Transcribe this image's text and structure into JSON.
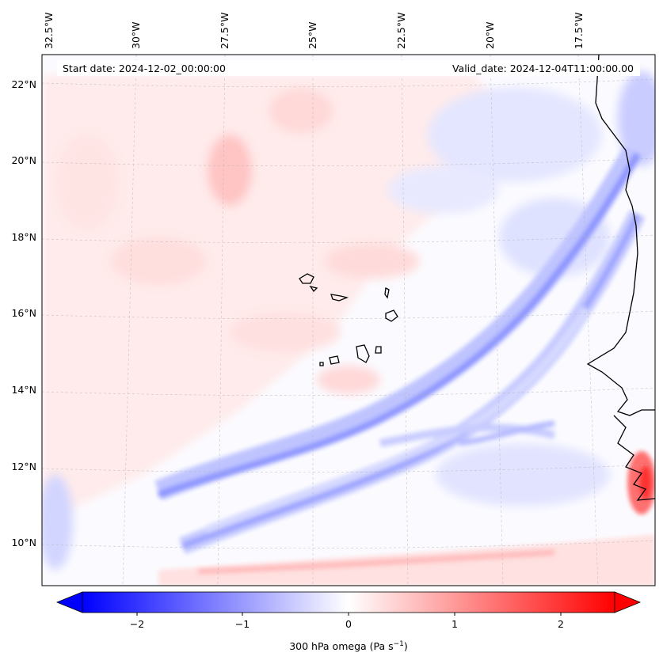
{
  "map": {
    "start_date": "Start date: 2024-12-02_00:00:00",
    "valid_date": "Valid_date: 2024-12-04T11:00:00.00",
    "lon_labels": [
      "32.5°W",
      "30°W",
      "27.5°W",
      "25°W",
      "22.5°W",
      "20°W",
      "17.5°W"
    ],
    "lat_labels": [
      "22°N",
      "20°N",
      "18°N",
      "16°N",
      "14°N",
      "12°N",
      "10°N"
    ]
  },
  "colorbar": {
    "ticks": [
      "−2",
      "−1",
      "0",
      "1",
      "2"
    ],
    "label": "300 hPa omega (Pa s",
    "label_exponent": "−1",
    "label_close": ")",
    "range": [
      -2.7,
      2.7
    ],
    "colors": {
      "negative": "#0000ff",
      "zero": "#ffffff",
      "positive": "#ff0000"
    }
  }
}
